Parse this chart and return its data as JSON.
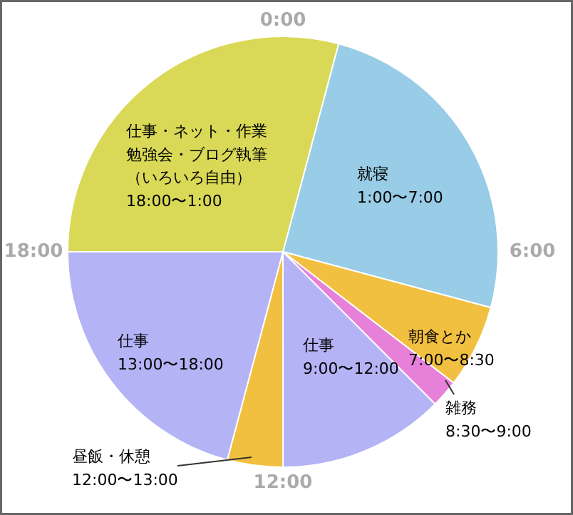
{
  "chart_data": {
    "type": "pie",
    "categories": [
      "就寝\n1:00〜7:00",
      "朝食とか\n7:00〜8:30",
      "雑務\n8:30〜9:00",
      "仕事\n9:00〜12:00",
      "昼飯・休憩\n12:00〜13:00",
      "仕事\n13:00〜18:00",
      "仕事・ネット・作業勉強会・ブログ執筆（いろいろ自由）\n18:00〜1:00"
    ],
    "values": [
      25,
      6.25,
      2.08,
      12.5,
      4.17,
      20.83,
      29.17
    ],
    "colors": [
      "#99cce6",
      "#f2c040",
      "#e680d9",
      "#b3b3f5",
      "#f2c040",
      "#b3b3f5",
      "#d9d957"
    ],
    "annotations": [
      "0:00",
      "6:00",
      "12:00",
      "18:00"
    ]
  }
}
